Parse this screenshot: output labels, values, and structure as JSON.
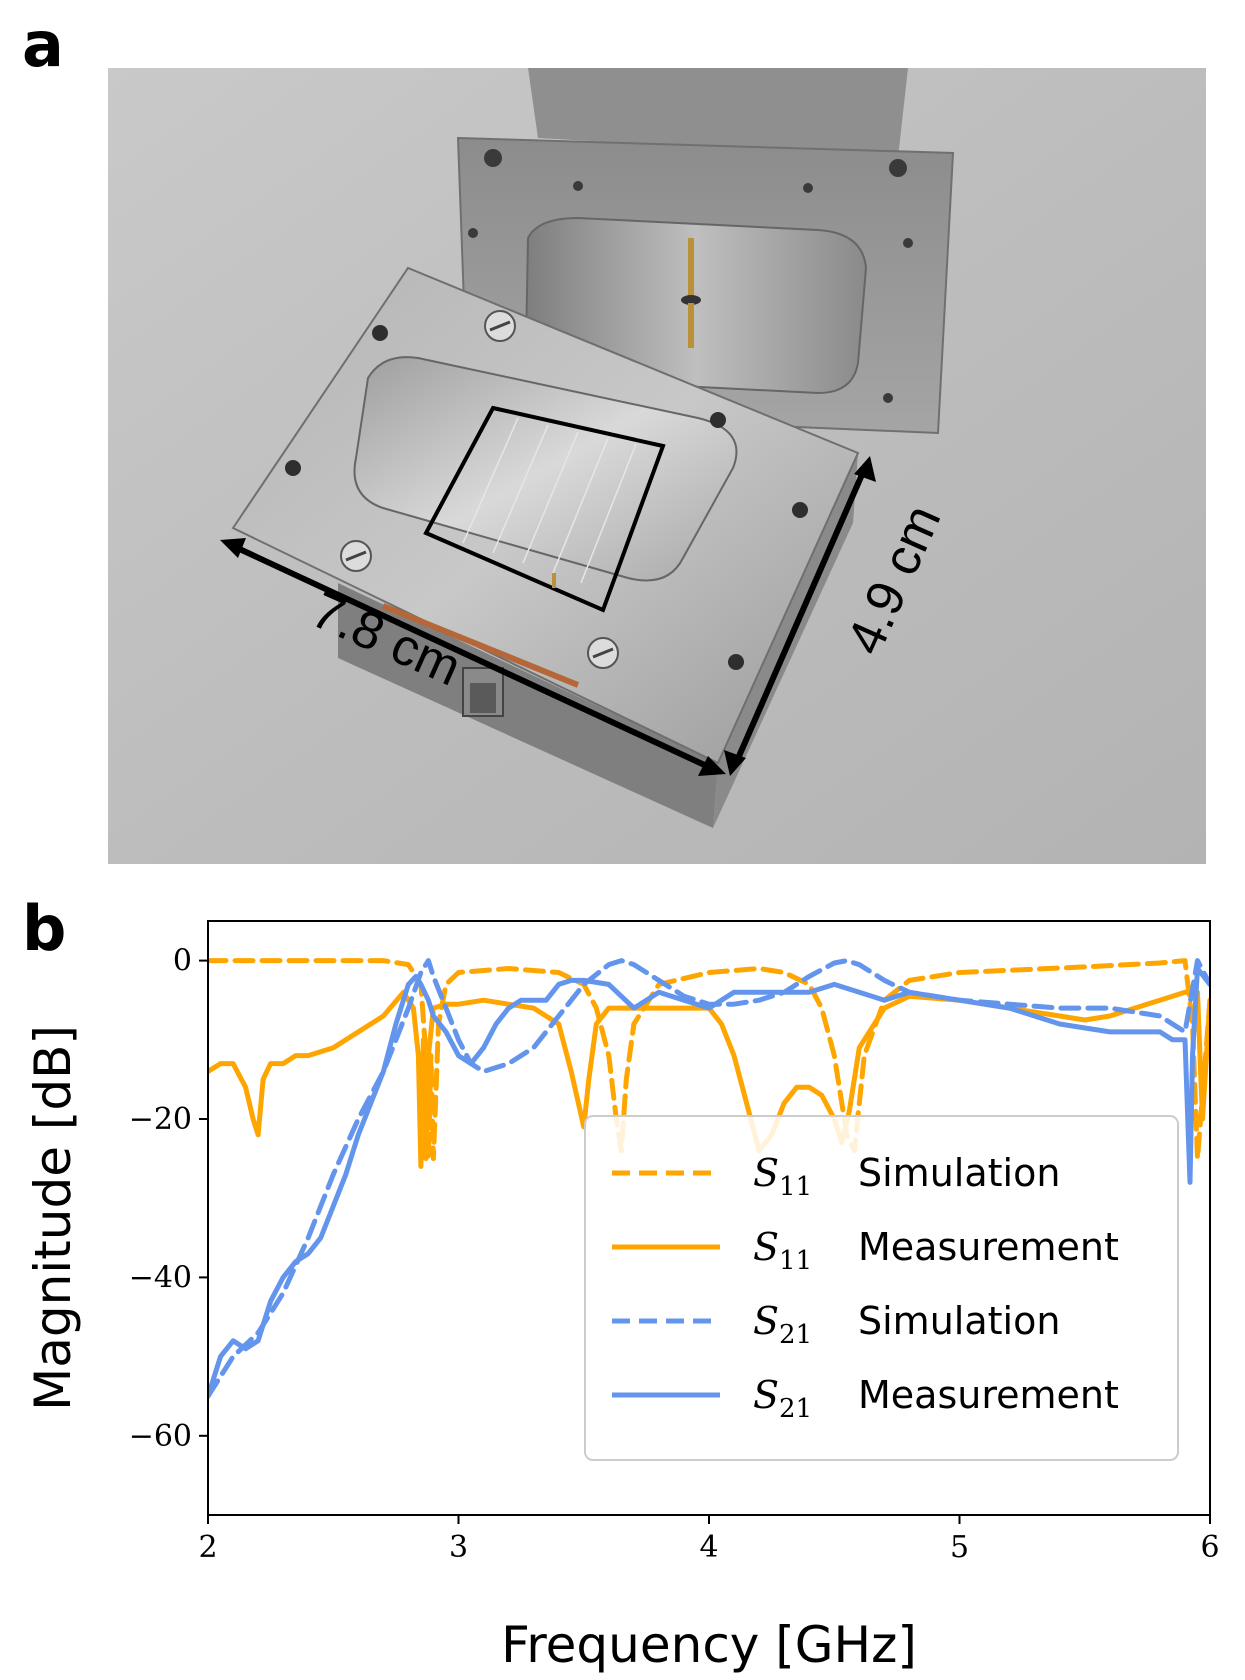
{
  "figure": {
    "panel_a_label": "a",
    "panel_b_label": "b"
  },
  "photo": {
    "dimension_width": "7.8 cm",
    "dimension_height": "4.9 cm"
  },
  "chart_data": {
    "type": "line",
    "xlabel": "Frequency [GHz]",
    "ylabel": "Magnitude [dB]",
    "xlim": [
      2,
      6
    ],
    "ylim": [
      -70,
      5
    ],
    "xticks": [
      2,
      3,
      4,
      5,
      6
    ],
    "yticks": [
      0,
      -20,
      -40,
      -60
    ],
    "ytick_labels": [
      "0",
      "−20",
      "−40",
      "−60"
    ],
    "grid": false,
    "legend_position": "lower-right",
    "colors": {
      "s11": "#FFA500",
      "s21": "#6495ED"
    },
    "series": [
      {
        "symbol": "S",
        "subscript": "11",
        "name": "Simulation",
        "style": "dashed",
        "color": "#FFA500",
        "x": [
          2.0,
          2.5,
          2.7,
          2.8,
          2.85,
          2.87,
          2.88,
          2.89,
          2.9,
          2.92,
          2.95,
          3.0,
          3.2,
          3.4,
          3.5,
          3.55,
          3.6,
          3.63,
          3.65,
          3.67,
          3.7,
          3.8,
          4.0,
          4.2,
          4.3,
          4.4,
          4.45,
          4.5,
          4.55,
          4.58,
          4.62,
          4.7,
          4.8,
          5.0,
          5.5,
          5.8,
          5.9,
          5.93,
          5.95,
          6.0
        ],
        "y": [
          0,
          0,
          0,
          -0.5,
          -3,
          -12,
          -25,
          -12,
          -25,
          -8,
          -3,
          -1.5,
          -1,
          -1.5,
          -3,
          -6,
          -12,
          -20,
          -24,
          -15,
          -8,
          -3,
          -1.5,
          -1,
          -1.5,
          -3,
          -6,
          -12,
          -22,
          -24,
          -12,
          -5,
          -2.5,
          -1.5,
          -0.8,
          -0.3,
          0,
          -8,
          -25,
          -5
        ]
      },
      {
        "symbol": "S",
        "subscript": "11",
        "name": "Measurement",
        "style": "solid",
        "color": "#FFA500",
        "x": [
          2.0,
          2.05,
          2.1,
          2.15,
          2.18,
          2.2,
          2.22,
          2.25,
          2.3,
          2.35,
          2.4,
          2.5,
          2.6,
          2.7,
          2.78,
          2.82,
          2.84,
          2.85,
          2.86,
          2.87,
          2.88,
          2.9,
          2.95,
          3.0,
          3.1,
          3.2,
          3.3,
          3.4,
          3.45,
          3.5,
          3.52,
          3.55,
          3.6,
          3.7,
          3.8,
          4.0,
          4.05,
          4.1,
          4.15,
          4.2,
          4.25,
          4.3,
          4.35,
          4.4,
          4.45,
          4.5,
          4.53,
          4.56,
          4.6,
          4.7,
          4.8,
          5.0,
          5.2,
          5.4,
          5.5,
          5.6,
          5.7,
          5.8,
          5.9,
          5.95,
          5.97,
          6.0
        ],
        "y": [
          -14,
          -13,
          -13,
          -16,
          -20,
          -22,
          -15,
          -13,
          -13,
          -12,
          -12,
          -11,
          -9,
          -7,
          -4,
          -6,
          -12,
          -26,
          -10,
          -25,
          -12,
          -6,
          -5.5,
          -5.5,
          -5,
          -5.5,
          -6,
          -8,
          -14,
          -21,
          -15,
          -8,
          -6,
          -6,
          -6,
          -6,
          -8,
          -12,
          -18,
          -24,
          -22,
          -18,
          -16,
          -16,
          -17,
          -20,
          -23,
          -19,
          -11,
          -6,
          -4.5,
          -5,
          -6,
          -7,
          -7.5,
          -7,
          -6,
          -5,
          -4,
          -4,
          -20,
          -5
        ]
      },
      {
        "symbol": "S",
        "subscript": "21",
        "name": "Simulation",
        "style": "dashed",
        "color": "#6495ED",
        "x": [
          2.0,
          2.1,
          2.2,
          2.3,
          2.4,
          2.5,
          2.6,
          2.7,
          2.8,
          2.85,
          2.88,
          2.9,
          2.95,
          3.0,
          3.05,
          3.1,
          3.2,
          3.3,
          3.4,
          3.5,
          3.6,
          3.65,
          3.7,
          3.8,
          3.9,
          4.0,
          4.1,
          4.2,
          4.3,
          4.4,
          4.5,
          4.55,
          4.6,
          4.7,
          4.8,
          5.0,
          5.2,
          5.4,
          5.6,
          5.8,
          5.9,
          5.95,
          6.0
        ],
        "y": [
          -55,
          -50,
          -47,
          -42,
          -35,
          -27,
          -20,
          -14,
          -6,
          -1.5,
          0,
          -2,
          -6,
          -10,
          -13,
          -14,
          -13,
          -11,
          -7,
          -3,
          -0.5,
          0,
          -0.5,
          -2.5,
          -4.5,
          -5.5,
          -5.5,
          -5,
          -4,
          -2,
          -0.3,
          0,
          -0.5,
          -2.5,
          -4,
          -5,
          -5.5,
          -6,
          -6,
          -7,
          -9,
          0,
          -3
        ]
      },
      {
        "symbol": "S",
        "subscript": "21",
        "name": "Measurement",
        "style": "solid",
        "color": "#6495ED",
        "x": [
          2.0,
          2.05,
          2.1,
          2.15,
          2.2,
          2.25,
          2.3,
          2.35,
          2.4,
          2.45,
          2.5,
          2.55,
          2.6,
          2.65,
          2.7,
          2.75,
          2.8,
          2.83,
          2.85,
          2.88,
          2.9,
          2.95,
          3.0,
          3.05,
          3.1,
          3.15,
          3.2,
          3.25,
          3.3,
          3.35,
          3.4,
          3.45,
          3.5,
          3.6,
          3.7,
          3.8,
          3.9,
          4.0,
          4.1,
          4.2,
          4.3,
          4.4,
          4.5,
          4.6,
          4.7,
          4.8,
          5.0,
          5.2,
          5.4,
          5.6,
          5.7,
          5.8,
          5.85,
          5.9,
          5.92,
          5.93,
          5.95,
          6.0
        ],
        "y": [
          -55,
          -50,
          -48,
          -49,
          -48,
          -43,
          -40,
          -38,
          -37,
          -35,
          -31,
          -27,
          -22,
          -18,
          -14,
          -8,
          -3,
          -2,
          -3,
          -5,
          -7,
          -9,
          -12,
          -13,
          -11,
          -8,
          -6,
          -5,
          -5,
          -5,
          -3,
          -2.5,
          -2.5,
          -3,
          -6,
          -4,
          -5,
          -6,
          -4,
          -4,
          -4,
          -4,
          -3,
          -4,
          -5,
          -4,
          -5,
          -6,
          -8,
          -9,
          -9,
          -9,
          -10,
          -10,
          -28,
          -12,
          -1,
          -3
        ]
      }
    ]
  }
}
